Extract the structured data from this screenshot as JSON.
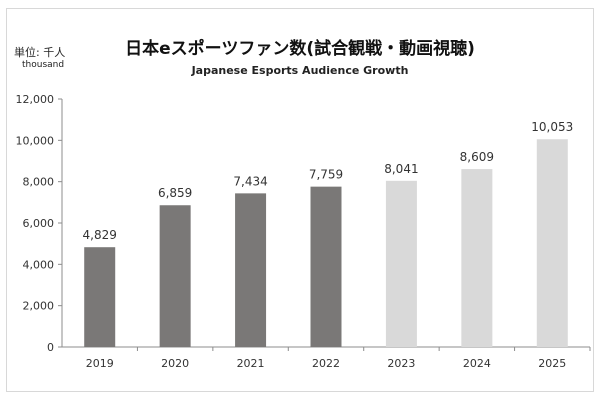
{
  "chart_data": {
    "type": "bar",
    "title": "日本eスポーツファン数(試合観戦・動画視聴)",
    "subtitle": "Japanese Esports Audience Growth",
    "unit_label": "単位: 千人",
    "unit_sublabel": "thousand",
    "categories": [
      "2019",
      "2020",
      "2021",
      "2022",
      "2023",
      "2024",
      "2025"
    ],
    "values": [
      4829,
      6859,
      7434,
      7759,
      8041,
      8609,
      10053
    ],
    "value_labels": [
      "4,829",
      "6,859",
      "7,434",
      "7,759",
      "8,041",
      "8,609",
      "10,053"
    ],
    "ylim": [
      0,
      12000
    ],
    "yticks": [
      0,
      2000,
      4000,
      6000,
      8000,
      10000,
      12000
    ],
    "ytick_labels": [
      "0",
      "2,000",
      "4,000",
      "6,000",
      "8,000",
      "10,000",
      "12,000"
    ],
    "grid": false,
    "bar_colors": [
      "#7a7877",
      "#7a7877",
      "#7a7877",
      "#7a7877",
      "#d9d9d9",
      "#d9d9d9",
      "#d9d9d9"
    ],
    "axis_color": "#8c8c8c",
    "label_color": "#333333"
  }
}
